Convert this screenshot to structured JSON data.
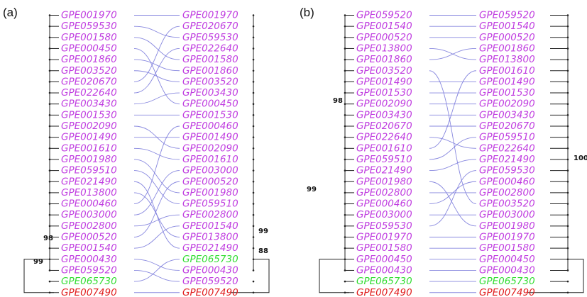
{
  "colors": {
    "purple": "#c03ee0",
    "green": "#33dd33",
    "red": "#e01e1e",
    "connector": "#7b7bdc",
    "tree": "#222222"
  },
  "panels": [
    {
      "label": "(a)",
      "left": [
        {
          "id": "GPE001970",
          "c": "purple"
        },
        {
          "id": "GPE059530",
          "c": "purple"
        },
        {
          "id": "GPE001580",
          "c": "purple"
        },
        {
          "id": "GPE000450",
          "c": "purple"
        },
        {
          "id": "GPE001860",
          "c": "purple"
        },
        {
          "id": "GPE003520",
          "c": "purple"
        },
        {
          "id": "GPE020670",
          "c": "purple"
        },
        {
          "id": "GPE022640",
          "c": "purple"
        },
        {
          "id": "GPE003430",
          "c": "purple"
        },
        {
          "id": "GPE001530",
          "c": "purple"
        },
        {
          "id": "GPE002090",
          "c": "purple"
        },
        {
          "id": "GPE001490",
          "c": "purple"
        },
        {
          "id": "GPE001610",
          "c": "purple"
        },
        {
          "id": "GPE001980",
          "c": "purple"
        },
        {
          "id": "GPE059510",
          "c": "purple"
        },
        {
          "id": "GPE021490",
          "c": "purple"
        },
        {
          "id": "GPE013800",
          "c": "purple"
        },
        {
          "id": "GPE000460",
          "c": "purple"
        },
        {
          "id": "GPE003000",
          "c": "purple"
        },
        {
          "id": "GPE002800",
          "c": "purple"
        },
        {
          "id": "GPE000520",
          "c": "purple"
        },
        {
          "id": "GPE001540",
          "c": "purple"
        },
        {
          "id": "GPE000430",
          "c": "purple"
        },
        {
          "id": "GPE059520",
          "c": "purple"
        },
        {
          "id": "GPE065730",
          "c": "green"
        },
        {
          "id": "GPE007490",
          "c": "red"
        }
      ],
      "right": [
        {
          "id": "GPE001970",
          "c": "purple"
        },
        {
          "id": "GPE020670",
          "c": "purple"
        },
        {
          "id": "GPE059530",
          "c": "purple"
        },
        {
          "id": "GPE022640",
          "c": "purple"
        },
        {
          "id": "GPE001580",
          "c": "purple"
        },
        {
          "id": "GPE001860",
          "c": "purple"
        },
        {
          "id": "GPE003520",
          "c": "purple"
        },
        {
          "id": "GPE003430",
          "c": "purple"
        },
        {
          "id": "GPE000450",
          "c": "purple"
        },
        {
          "id": "GPE001530",
          "c": "purple"
        },
        {
          "id": "GPE000460",
          "c": "purple"
        },
        {
          "id": "GPE001490",
          "c": "purple"
        },
        {
          "id": "GPE002090",
          "c": "purple"
        },
        {
          "id": "GPE001610",
          "c": "purple"
        },
        {
          "id": "GPE003000",
          "c": "purple"
        },
        {
          "id": "GPE000520",
          "c": "purple"
        },
        {
          "id": "GPE001980",
          "c": "purple"
        },
        {
          "id": "GPE059510",
          "c": "purple"
        },
        {
          "id": "GPE002800",
          "c": "purple"
        },
        {
          "id": "GPE001540",
          "c": "purple"
        },
        {
          "id": "GPE013800",
          "c": "purple"
        },
        {
          "id": "GPE021490",
          "c": "purple"
        },
        {
          "id": "GPE065730",
          "c": "green"
        },
        {
          "id": "GPE000430",
          "c": "purple"
        },
        {
          "id": "GPE059520",
          "c": "purple"
        },
        {
          "id": "GPE007490",
          "c": "red"
        }
      ],
      "bootstrap": [
        "98",
        "99",
        "99",
        "88"
      ]
    },
    {
      "label": "(b)",
      "left": [
        {
          "id": "GPE059520",
          "c": "purple"
        },
        {
          "id": "GPE001540",
          "c": "purple"
        },
        {
          "id": "GPE000520",
          "c": "purple"
        },
        {
          "id": "GPE013800",
          "c": "purple"
        },
        {
          "id": "GPE001860",
          "c": "purple"
        },
        {
          "id": "GPE003520",
          "c": "purple"
        },
        {
          "id": "GPE001490",
          "c": "purple"
        },
        {
          "id": "GPE001530",
          "c": "purple"
        },
        {
          "id": "GPE002090",
          "c": "purple"
        },
        {
          "id": "GPE003430",
          "c": "purple"
        },
        {
          "id": "GPE020670",
          "c": "purple"
        },
        {
          "id": "GPE022640",
          "c": "purple"
        },
        {
          "id": "GPE001610",
          "c": "purple"
        },
        {
          "id": "GPE059510",
          "c": "purple"
        },
        {
          "id": "GPE021490",
          "c": "purple"
        },
        {
          "id": "GPE001980",
          "c": "purple"
        },
        {
          "id": "GPE002800",
          "c": "purple"
        },
        {
          "id": "GPE000460",
          "c": "purple"
        },
        {
          "id": "GPE003000",
          "c": "purple"
        },
        {
          "id": "GPE059530",
          "c": "purple"
        },
        {
          "id": "GPE001970",
          "c": "purple"
        },
        {
          "id": "GPE001580",
          "c": "purple"
        },
        {
          "id": "GPE000450",
          "c": "purple"
        },
        {
          "id": "GPE000430",
          "c": "purple"
        },
        {
          "id": "GPE065730",
          "c": "green"
        },
        {
          "id": "GPE007490",
          "c": "red"
        }
      ],
      "right": [
        {
          "id": "GPE059520",
          "c": "purple"
        },
        {
          "id": "GPE001540",
          "c": "purple"
        },
        {
          "id": "GPE000520",
          "c": "purple"
        },
        {
          "id": "GPE001860",
          "c": "purple"
        },
        {
          "id": "GPE013800",
          "c": "purple"
        },
        {
          "id": "GPE001610",
          "c": "purple"
        },
        {
          "id": "GPE001490",
          "c": "purple"
        },
        {
          "id": "GPE001530",
          "c": "purple"
        },
        {
          "id": "GPE002090",
          "c": "purple"
        },
        {
          "id": "GPE003430",
          "c": "purple"
        },
        {
          "id": "GPE020670",
          "c": "purple"
        },
        {
          "id": "GPE059510",
          "c": "purple"
        },
        {
          "id": "GPE022640",
          "c": "purple"
        },
        {
          "id": "GPE021490",
          "c": "purple"
        },
        {
          "id": "GPE059530",
          "c": "purple"
        },
        {
          "id": "GPE000460",
          "c": "purple"
        },
        {
          "id": "GPE002800",
          "c": "purple"
        },
        {
          "id": "GPE003520",
          "c": "purple"
        },
        {
          "id": "GPE003000",
          "c": "purple"
        },
        {
          "id": "GPE001980",
          "c": "purple"
        },
        {
          "id": "GPE001970",
          "c": "purple"
        },
        {
          "id": "GPE001580",
          "c": "purple"
        },
        {
          "id": "GPE000450",
          "c": "purple"
        },
        {
          "id": "GPE000430",
          "c": "purple"
        },
        {
          "id": "GPE065730",
          "c": "green"
        },
        {
          "id": "GPE007490",
          "c": "red"
        }
      ],
      "bootstrap": [
        "98",
        "99",
        "100"
      ]
    }
  ]
}
